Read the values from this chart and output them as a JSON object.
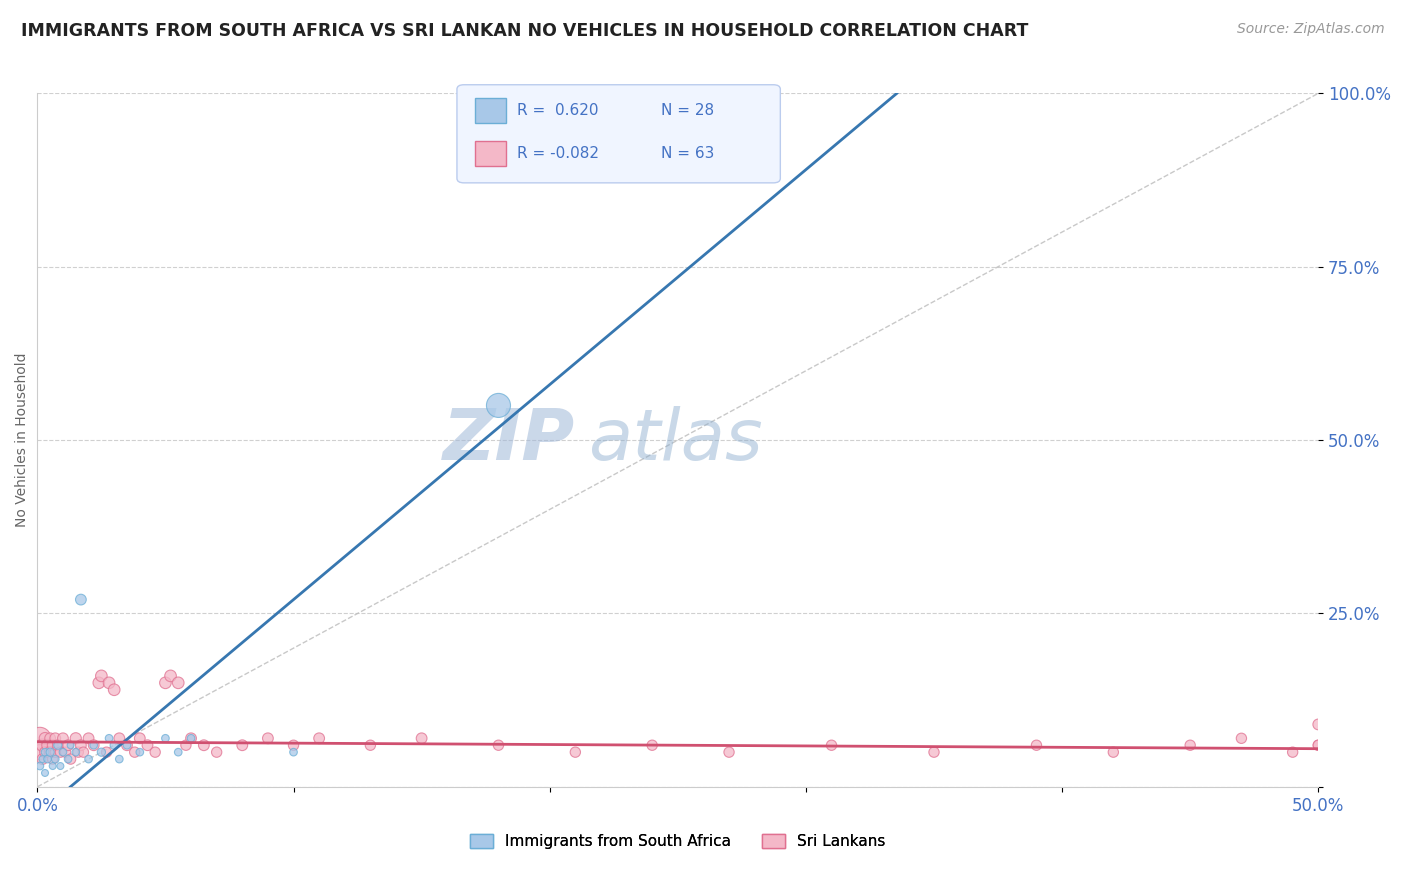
{
  "title": "IMMIGRANTS FROM SOUTH AFRICA VS SRI LANKAN NO VEHICLES IN HOUSEHOLD CORRELATION CHART",
  "source_text": "Source: ZipAtlas.com",
  "ylabel_label": "No Vehicles in Household",
  "legend_label1": "Immigrants from South Africa",
  "legend_label2": "Sri Lankans",
  "R1": 0.62,
  "N1": 28,
  "R2": -0.082,
  "N2": 63,
  "color_blue": "#a8c8e8",
  "color_blue_edge": "#6baed6",
  "color_blue_line": "#3777b0",
  "color_pink": "#f4b8c8",
  "color_pink_edge": "#e07090",
  "color_pink_line": "#d05070",
  "color_diag": "#bbbbbb",
  "title_color": "#222222",
  "axis_label_color": "#4472c4",
  "watermark_color": "#c8d8f0",
  "blue_line_slope": 3.1,
  "blue_line_intercept": -0.04,
  "pink_line_slope": -0.02,
  "pink_line_intercept": 0.065,
  "blue_scatter_x": [
    0.001,
    0.002,
    0.003,
    0.003,
    0.004,
    0.005,
    0.006,
    0.007,
    0.008,
    0.009,
    0.01,
    0.012,
    0.013,
    0.015,
    0.017,
    0.02,
    0.022,
    0.025,
    0.028,
    0.03,
    0.032,
    0.035,
    0.04,
    0.05,
    0.055,
    0.06,
    0.1,
    0.18
  ],
  "blue_scatter_y": [
    0.03,
    0.04,
    0.05,
    0.02,
    0.04,
    0.05,
    0.03,
    0.04,
    0.06,
    0.03,
    0.05,
    0.04,
    0.06,
    0.05,
    0.27,
    0.04,
    0.06,
    0.05,
    0.07,
    0.06,
    0.04,
    0.06,
    0.05,
    0.07,
    0.05,
    0.07,
    0.05,
    0.55
  ],
  "blue_scatter_s": [
    30,
    25,
    30,
    25,
    30,
    35,
    25,
    30,
    35,
    25,
    30,
    30,
    25,
    30,
    60,
    30,
    30,
    35,
    30,
    35,
    30,
    30,
    30,
    30,
    30,
    30,
    30,
    300
  ],
  "pink_scatter_x": [
    0.001,
    0.001,
    0.002,
    0.002,
    0.003,
    0.003,
    0.004,
    0.005,
    0.005,
    0.006,
    0.006,
    0.007,
    0.007,
    0.008,
    0.009,
    0.01,
    0.011,
    0.012,
    0.013,
    0.015,
    0.016,
    0.017,
    0.018,
    0.02,
    0.022,
    0.024,
    0.025,
    0.027,
    0.028,
    0.03,
    0.032,
    0.035,
    0.038,
    0.04,
    0.043,
    0.046,
    0.05,
    0.052,
    0.055,
    0.058,
    0.06,
    0.065,
    0.07,
    0.08,
    0.09,
    0.1,
    0.11,
    0.13,
    0.15,
    0.18,
    0.21,
    0.24,
    0.27,
    0.31,
    0.35,
    0.39,
    0.42,
    0.45,
    0.47,
    0.49,
    0.5,
    0.5,
    0.5
  ],
  "pink_scatter_y": [
    0.07,
    0.05,
    0.06,
    0.04,
    0.07,
    0.05,
    0.06,
    0.07,
    0.05,
    0.06,
    0.04,
    0.07,
    0.05,
    0.06,
    0.05,
    0.07,
    0.05,
    0.06,
    0.04,
    0.07,
    0.05,
    0.06,
    0.05,
    0.07,
    0.06,
    0.15,
    0.16,
    0.05,
    0.15,
    0.14,
    0.07,
    0.06,
    0.05,
    0.07,
    0.06,
    0.05,
    0.15,
    0.16,
    0.15,
    0.06,
    0.07,
    0.06,
    0.05,
    0.06,
    0.07,
    0.06,
    0.07,
    0.06,
    0.07,
    0.06,
    0.05,
    0.06,
    0.05,
    0.06,
    0.05,
    0.06,
    0.05,
    0.06,
    0.07,
    0.05,
    0.06,
    0.06,
    0.09
  ],
  "pink_scatter_s": [
    250,
    120,
    80,
    60,
    70,
    60,
    70,
    60,
    70,
    60,
    55,
    60,
    55,
    60,
    55,
    60,
    55,
    60,
    55,
    65,
    55,
    60,
    55,
    60,
    60,
    70,
    70,
    55,
    70,
    70,
    60,
    60,
    55,
    60,
    60,
    55,
    70,
    70,
    70,
    55,
    60,
    60,
    55,
    60,
    60,
    55,
    60,
    55,
    60,
    55,
    55,
    55,
    55,
    55,
    55,
    55,
    55,
    55,
    55,
    55,
    55,
    55,
    60
  ],
  "xlim": [
    0.0,
    0.5
  ],
  "ylim": [
    0.0,
    1.0
  ],
  "yticks": [
    0.0,
    0.25,
    0.5,
    0.75,
    1.0
  ],
  "ytick_labels": [
    "",
    "25.0%",
    "50.0%",
    "75.0%",
    "100.0%"
  ]
}
